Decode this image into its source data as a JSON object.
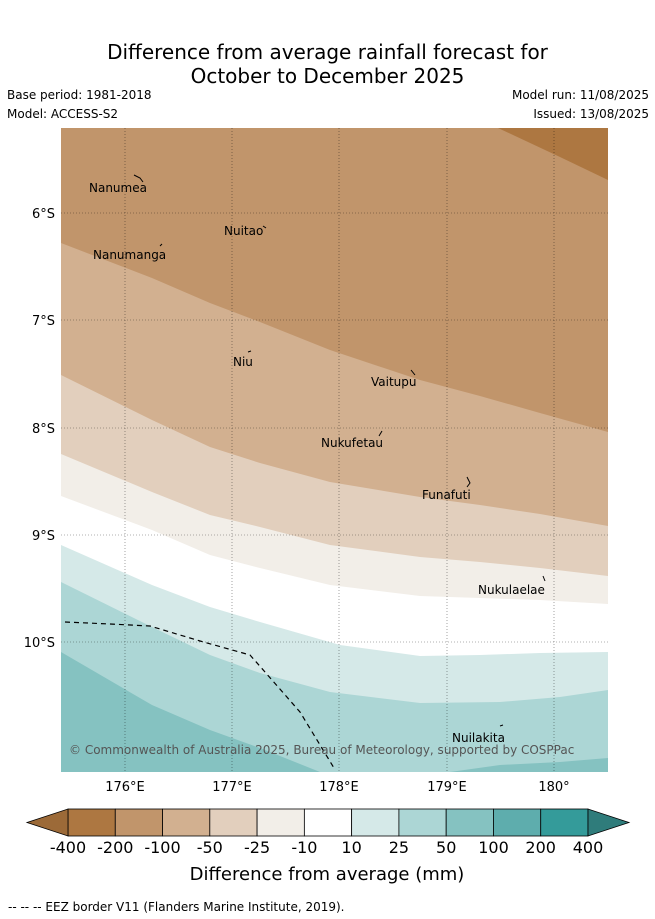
{
  "title_line1": "Difference from average rainfall forecast for",
  "title_line2": "October to December 2025",
  "base_period": "Base period: 1981-2018",
  "model": "Model: ACCESS-S2",
  "model_run": "Model run: 11/08/2025",
  "issued": "Issued: 13/08/2025",
  "copyright": "© Commonwealth of Australia 2025, Bureau of Meteorology, supported by COSPPac",
  "lat_labels": [
    "6°S",
    "7°S",
    "8°S",
    "9°S",
    "10°S"
  ],
  "lon_labels": [
    "176°E",
    "177°E",
    "178°E",
    "179°E",
    "180°"
  ],
  "places": [
    "Nanumea",
    "Nuitao",
    "Nanumanga",
    "Niu",
    "Vaitupu",
    "Nukufetau",
    "Funafuti",
    "Nukulaelae",
    "Nuilakita"
  ],
  "colorbar": {
    "labels": [
      "-400",
      "-200",
      "-100",
      "-50",
      "-25",
      "-10",
      "10",
      "25",
      "50",
      "100",
      "200",
      "400"
    ],
    "title": "Difference from average (mm)",
    "colors": [
      "#ad7741",
      "#c1956b",
      "#d2b090",
      "#e2cfbd",
      "#f2eee8",
      "#ffffff",
      "#d5e9e8",
      "#acd6d5",
      "#85c2c1",
      "#5eadad",
      "#349b9a"
    ],
    "under_color": "#9c6a38",
    "over_color": "#2f7c7b"
  },
  "footnote": "-- --  -- EEZ border V11 (Flanders Marine Institute, 2019)."
}
